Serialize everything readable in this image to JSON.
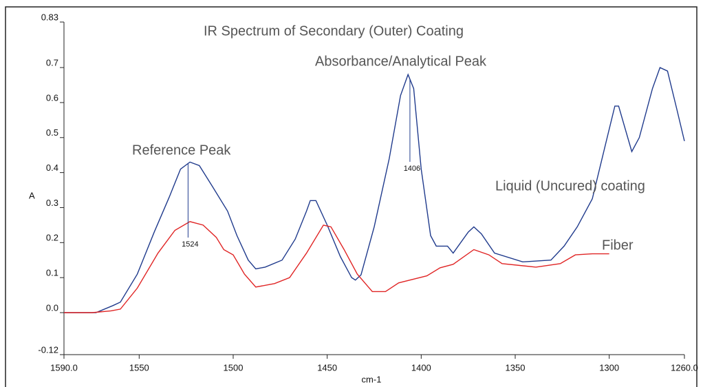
{
  "chart_data": {
    "type": "line",
    "title": "IR Spectrum of Secondary (Outer) Coating",
    "annotations": [
      "Absorbance/Analytical Peak",
      "Reference Peak"
    ],
    "peak_labels": [
      1524,
      1406
    ],
    "xlabel": "cm-1",
    "ylabel": "A",
    "xlim": [
      1590,
      1260
    ],
    "ylim": [
      -0.12,
      0.83
    ],
    "xticks": [
      {
        "value": 1590,
        "label": "1590.0"
      },
      1550,
      1500,
      1450,
      1400,
      1350,
      1300,
      {
        "value": 1260,
        "label": "1260.0"
      }
    ],
    "yticks": [
      -0.12,
      {
        "value": 0,
        "label": "0.0"
      },
      0.1,
      0.2,
      0.3,
      0.4,
      0.5,
      0.6,
      0.7,
      0.83
    ],
    "series": [
      {
        "name": "Liquid (Uncured) coating",
        "color": "#1f3a8c",
        "x": [
          1590,
          1573,
          1564,
          1560,
          1551,
          1542,
          1534,
          1528,
          1523,
          1518,
          1511,
          1503,
          1498,
          1492,
          1488,
          1483,
          1474,
          1467,
          1461,
          1459,
          1456,
          1450,
          1443,
          1437,
          1435,
          1432,
          1425,
          1417,
          1411,
          1407,
          1404,
          1400,
          1395,
          1392,
          1386,
          1383,
          1375,
          1372,
          1368,
          1361,
          1346,
          1331,
          1324,
          1317,
          1309,
          1302,
          1297,
          1295,
          1288,
          1284,
          1277,
          1273,
          1269,
          1264,
          1260
        ],
        "values": [
          0.0,
          0.0,
          0.02,
          0.03,
          0.11,
          0.23,
          0.33,
          0.41,
          0.43,
          0.42,
          0.36,
          0.29,
          0.22,
          0.15,
          0.125,
          0.13,
          0.15,
          0.21,
          0.29,
          0.32,
          0.32,
          0.25,
          0.16,
          0.1,
          0.093,
          0.108,
          0.245,
          0.44,
          0.62,
          0.68,
          0.64,
          0.41,
          0.22,
          0.19,
          0.19,
          0.17,
          0.23,
          0.245,
          0.225,
          0.17,
          0.145,
          0.15,
          0.19,
          0.245,
          0.325,
          0.48,
          0.59,
          0.59,
          0.46,
          0.5,
          0.64,
          0.7,
          0.69,
          0.58,
          0.49
        ]
      },
      {
        "name": "Fiber",
        "color": "#e02424",
        "x": [
          1590,
          1575,
          1565,
          1560,
          1551,
          1540,
          1531,
          1523,
          1516,
          1509,
          1505,
          1500,
          1494,
          1488,
          1478,
          1470,
          1461,
          1452,
          1448,
          1441,
          1434,
          1426,
          1419,
          1412,
          1397,
          1390,
          1383,
          1372,
          1364,
          1357,
          1339,
          1326,
          1318,
          1309,
          1300
        ],
        "values": [
          0.0,
          0.0,
          0.005,
          0.01,
          0.07,
          0.17,
          0.235,
          0.26,
          0.25,
          0.215,
          0.18,
          0.165,
          0.11,
          0.073,
          0.083,
          0.1,
          0.17,
          0.25,
          0.245,
          0.18,
          0.11,
          0.06,
          0.06,
          0.085,
          0.105,
          0.128,
          0.138,
          0.18,
          0.165,
          0.14,
          0.13,
          0.14,
          0.165,
          0.168,
          0.168
        ]
      }
    ]
  }
}
